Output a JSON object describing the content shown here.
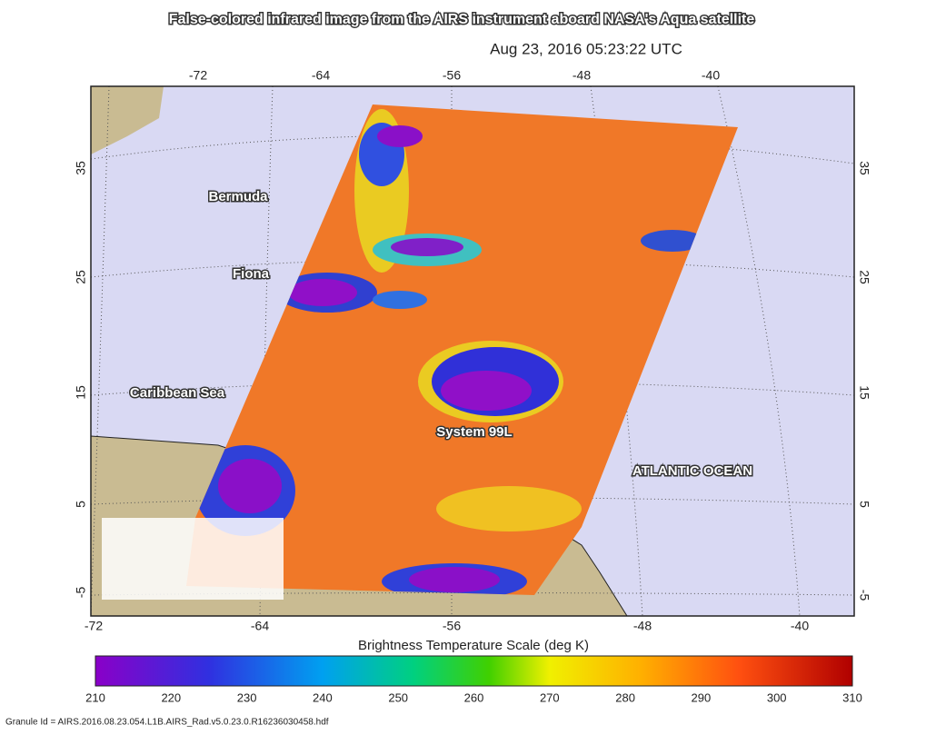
{
  "header": {
    "title": "False-colored infrared image from the AIRS instrument aboard NASA's Aqua satellite",
    "timestamp": "Aug 23, 2016 05:23:22 UTC"
  },
  "map": {
    "top_lon_labels": [
      -72,
      -64,
      -56,
      -48,
      -40
    ],
    "bottom_lon_labels": [
      -72,
      -64,
      -56,
      -48,
      -40
    ],
    "left_lat_labels": [
      35,
      25,
      15,
      5,
      -5
    ],
    "right_lat_labels": [
      35,
      25,
      15,
      5,
      -5
    ],
    "place_labels": [
      "Bermuda",
      "Fiona",
      "Caribbean Sea",
      "System 99L",
      "ATLANTIC OCEAN"
    ]
  },
  "colorbar": {
    "title": "Brightness Temperature Scale (deg K)",
    "ticks": [
      210,
      220,
      230,
      240,
      250,
      260,
      270,
      280,
      290,
      300,
      310
    ]
  },
  "footer": {
    "granule_id": "Granule Id = AIRS.2016.08.23.054.L1B.AIRS_Rad.v5.0.23.0.R16236030458.hdf"
  }
}
